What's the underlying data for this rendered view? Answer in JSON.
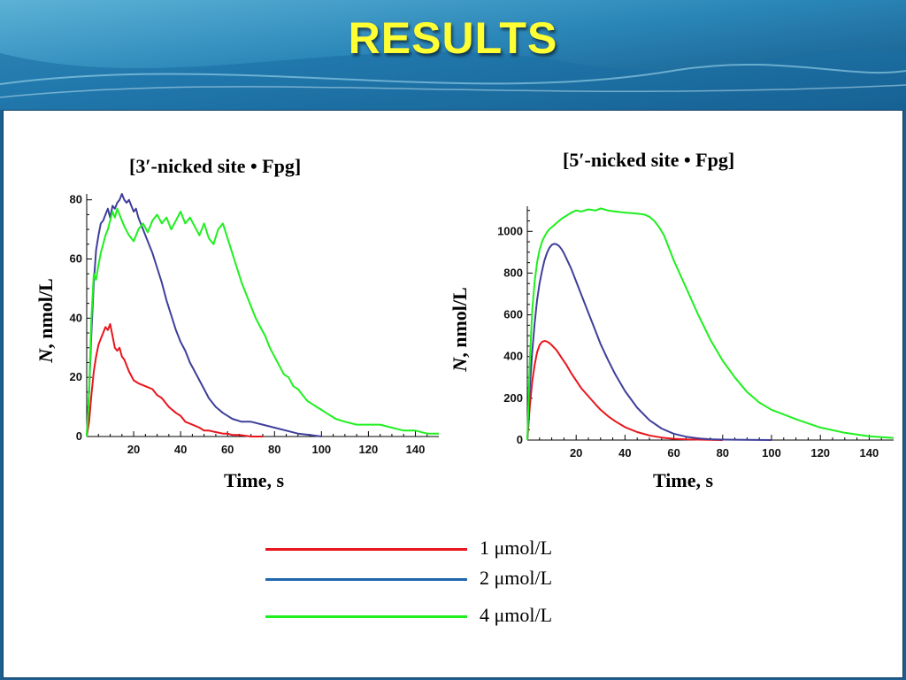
{
  "slide": {
    "title": "RESULTS"
  },
  "legend": {
    "items": [
      {
        "label": "1 μmol/L",
        "color": "#e8151c"
      },
      {
        "label": "2 μmol/L",
        "color": "#1f66b0"
      },
      {
        "label": "4 μmol/L",
        "color": "#1ef01e"
      }
    ]
  },
  "chart_data": [
    {
      "type": "line",
      "title": "[3′-nicked site • Fpg]",
      "xlabel": "Time, s",
      "ylabel_italic": "N",
      "ylabel_rest": ", nmol/L",
      "xlim": [
        0,
        150
      ],
      "ylim": [
        0,
        82
      ],
      "xticks": [
        20,
        40,
        60,
        80,
        100,
        120,
        140
      ],
      "yticks": [
        0,
        20,
        40,
        60,
        80
      ],
      "grid": false,
      "series": [
        {
          "name": "1 μmol/L",
          "color": "#e8151c",
          "x": [
            0,
            1,
            2,
            3,
            4,
            5,
            6,
            7,
            8,
            9,
            10,
            11,
            12,
            13,
            14,
            15,
            16,
            18,
            20,
            22,
            25,
            28,
            30,
            32,
            35,
            38,
            40,
            42,
            45,
            48,
            50,
            52,
            55,
            58,
            60,
            62,
            65,
            70,
            75
          ],
          "y": [
            0,
            5,
            14,
            22,
            27,
            31,
            33,
            35,
            37,
            36,
            38,
            34,
            30,
            29,
            30,
            27,
            26,
            22,
            19,
            18,
            17,
            16,
            14,
            13,
            10,
            8,
            7,
            5,
            4,
            3,
            2,
            2,
            1.5,
            1,
            1,
            0.5,
            0.5,
            0,
            0
          ]
        },
        {
          "name": "2 μmol/L",
          "color": "#3f3f9a",
          "x": [
            0,
            1,
            2,
            3,
            4,
            5,
            6,
            7,
            8,
            9,
            10,
            11,
            12,
            13,
            14,
            15,
            16,
            17,
            18,
            19,
            20,
            21,
            22,
            24,
            26,
            28,
            30,
            32,
            34,
            36,
            38,
            40,
            42,
            44,
            46,
            48,
            50,
            52,
            55,
            58,
            62,
            66,
            70,
            75,
            80,
            85,
            90,
            95,
            100
          ],
          "y": [
            0,
            15,
            35,
            52,
            63,
            68,
            72,
            73,
            75,
            77,
            74,
            78,
            77,
            79,
            80,
            82,
            80,
            79,
            80,
            78,
            76,
            77,
            74,
            70,
            66,
            62,
            57,
            52,
            46,
            41,
            36,
            32,
            29,
            25,
            22,
            19,
            16,
            13,
            10,
            8,
            6,
            5,
            5,
            4,
            3,
            2,
            1,
            0.5,
            0
          ]
        },
        {
          "name": "4 μmol/L",
          "color": "#1ef01e",
          "x": [
            0,
            1,
            2,
            3,
            4,
            5,
            6,
            7,
            8,
            9,
            10,
            11,
            12,
            13,
            14,
            15,
            16,
            18,
            20,
            22,
            24,
            26,
            28,
            30,
            32,
            34,
            36,
            38,
            40,
            42,
            44,
            46,
            48,
            50,
            52,
            54,
            56,
            58,
            60,
            62,
            64,
            66,
            68,
            70,
            72,
            74,
            76,
            78,
            80,
            82,
            84,
            86,
            88,
            90,
            92,
            94,
            96,
            98,
            100,
            102,
            104,
            106,
            110,
            115,
            120,
            125,
            130,
            135,
            140,
            145,
            150
          ],
          "y": [
            0,
            15,
            40,
            55,
            53,
            58,
            62,
            65,
            68,
            70,
            73,
            76,
            74,
            77,
            75,
            73,
            71,
            68,
            66,
            70,
            72,
            69,
            73,
            75,
            72,
            74,
            70,
            73,
            76,
            72,
            74,
            71,
            68,
            72,
            67,
            65,
            70,
            72,
            67,
            62,
            57,
            52,
            48,
            44,
            40,
            37,
            34,
            30,
            27,
            24,
            21,
            20,
            17,
            16,
            14,
            12,
            11,
            10,
            9,
            8,
            7,
            6,
            5,
            4,
            4,
            4,
            3,
            2,
            2,
            1,
            1
          ]
        }
      ]
    },
    {
      "type": "line",
      "title": "[5′-nicked site • Fpg]",
      "xlabel": "Time, s",
      "ylabel_italic": "N",
      "ylabel_rest": ", nmol/L",
      "xlim": [
        0,
        150
      ],
      "ylim": [
        0,
        1120
      ],
      "xticks": [
        20,
        40,
        60,
        80,
        100,
        120,
        140
      ],
      "yticks": [
        0,
        200,
        400,
        600,
        800,
        1000
      ],
      "grid": false,
      "series": [
        {
          "name": "1 μmol/L",
          "color": "#e8151c",
          "x": [
            0,
            1,
            2,
            3,
            4,
            5,
            6,
            7,
            8,
            9,
            10,
            12,
            14,
            16,
            18,
            20,
            22,
            25,
            28,
            30,
            33,
            36,
            40,
            45,
            50,
            55,
            60,
            65,
            70,
            75,
            80
          ],
          "y": [
            0,
            160,
            280,
            360,
            420,
            455,
            470,
            475,
            472,
            465,
            455,
            430,
            395,
            360,
            320,
            285,
            250,
            210,
            170,
            145,
            115,
            90,
            62,
            38,
            22,
            12,
            6,
            3,
            2,
            1,
            0
          ]
        },
        {
          "name": "2 μmol/L",
          "color": "#3f3f9a",
          "x": [
            0,
            1,
            2,
            3,
            4,
            5,
            6,
            7,
            8,
            9,
            10,
            11,
            12,
            13,
            14,
            15,
            16,
            18,
            20,
            22,
            25,
            28,
            30,
            33,
            36,
            40,
            45,
            50,
            55,
            60,
            65,
            70,
            75,
            80,
            90,
            100
          ],
          "y": [
            0,
            250,
            420,
            560,
            670,
            750,
            810,
            860,
            895,
            920,
            935,
            940,
            938,
            930,
            915,
            895,
            870,
            820,
            760,
            700,
            610,
            520,
            460,
            385,
            315,
            235,
            155,
            95,
            55,
            30,
            16,
            8,
            4,
            2,
            1,
            0
          ]
        },
        {
          "name": "4 μmol/L",
          "color": "#1ef01e",
          "x": [
            0,
            1,
            2,
            3,
            4,
            5,
            6,
            7,
            8,
            9,
            10,
            12,
            14,
            16,
            18,
            20,
            22,
            25,
            28,
            30,
            33,
            36,
            40,
            45,
            48,
            50,
            52,
            54,
            56,
            58,
            60,
            65,
            70,
            75,
            80,
            85,
            90,
            95,
            100,
            110,
            120,
            130,
            140,
            150
          ],
          "y": [
            0,
            380,
            620,
            760,
            850,
            910,
            950,
            975,
            995,
            1010,
            1020,
            1040,
            1060,
            1075,
            1090,
            1100,
            1095,
            1105,
            1100,
            1110,
            1100,
            1095,
            1090,
            1085,
            1080,
            1070,
            1050,
            1020,
            980,
            920,
            860,
            730,
            600,
            480,
            380,
            300,
            230,
            180,
            145,
            100,
            60,
            35,
            18,
            10
          ]
        }
      ]
    }
  ]
}
